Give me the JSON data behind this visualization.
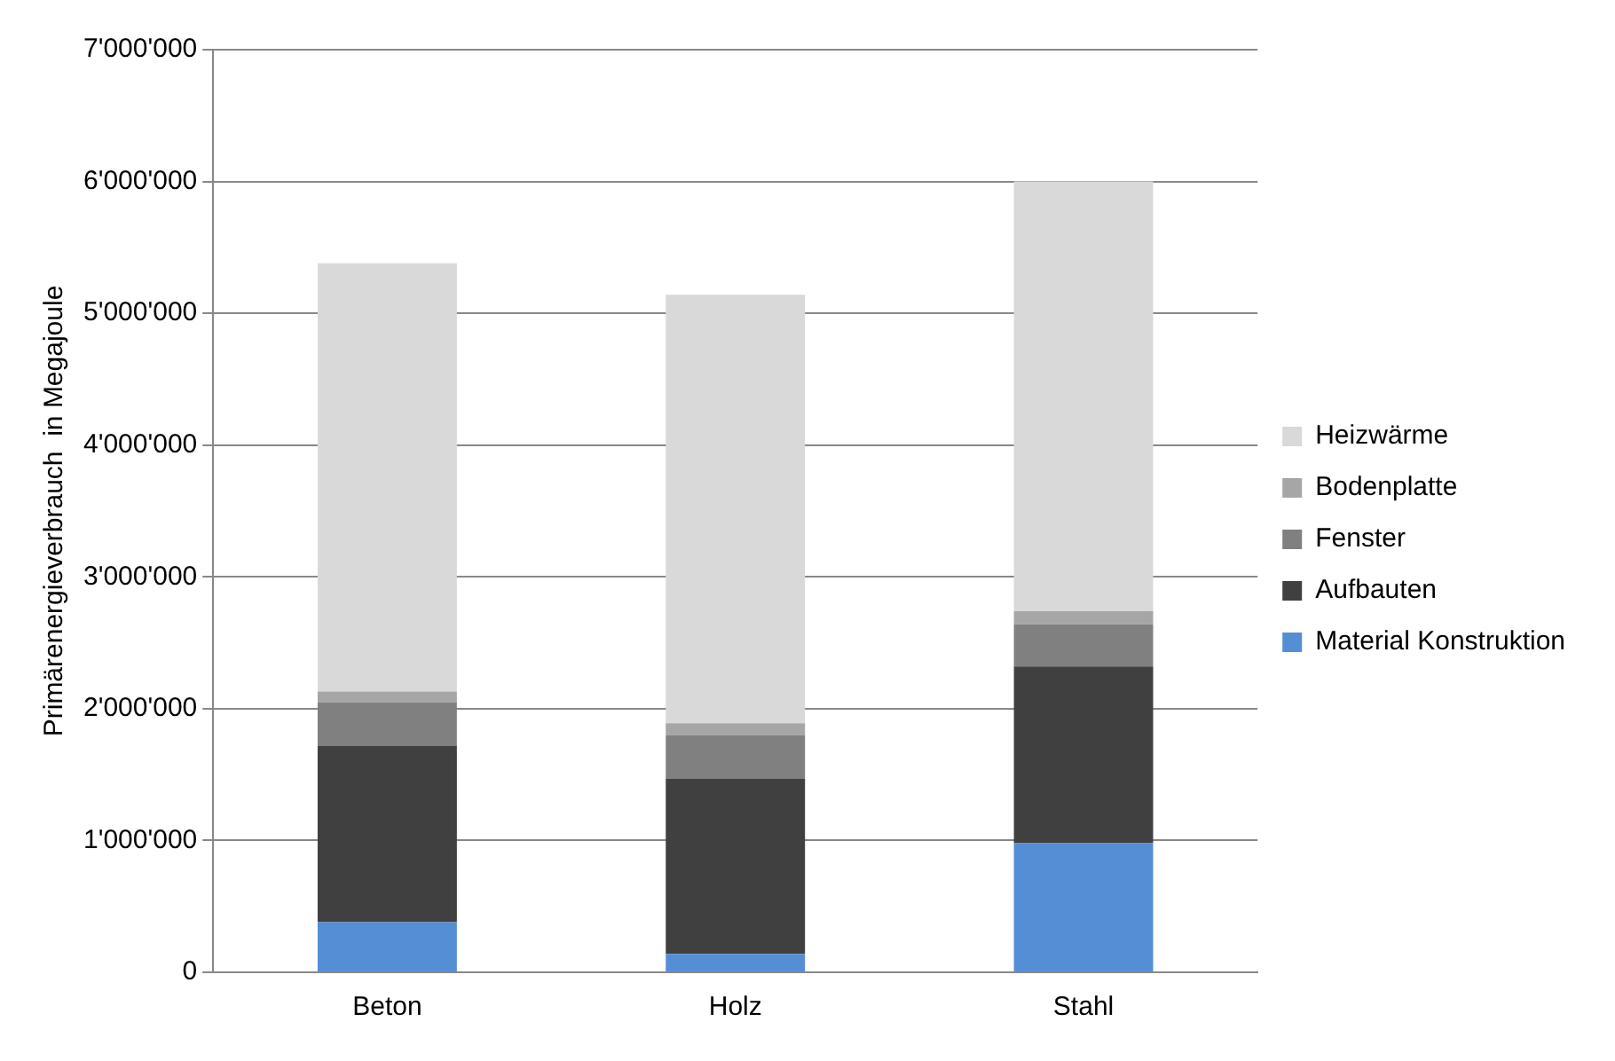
{
  "chart_data": {
    "type": "bar",
    "stacked": true,
    "ylabel": "Primärenergieverbrauch  in Megajoule",
    "categories": [
      "Beton",
      "Holz",
      "Stahl"
    ],
    "series": [
      {
        "name": "Material Konstruktion",
        "color": "#558ed5",
        "values": [
          380000,
          140000,
          980000
        ]
      },
      {
        "name": "Aufbauten",
        "color": "#404040",
        "values": [
          1340000,
          1330000,
          1340000
        ]
      },
      {
        "name": "Fenster",
        "color": "#808080",
        "values": [
          330000,
          330000,
          320000
        ]
      },
      {
        "name": "Bodenplatte",
        "color": "#a6a6a6",
        "values": [
          80000,
          90000,
          100000
        ]
      },
      {
        "name": "Heizwärme",
        "color": "#d9d9d9",
        "values": [
          3250000,
          3250000,
          3260000
        ]
      }
    ],
    "ylim": [
      0,
      7000000
    ],
    "yticks": [
      {
        "value": 0,
        "label": "0"
      },
      {
        "value": 1000000,
        "label": "1'000'000"
      },
      {
        "value": 2000000,
        "label": "2'000'000"
      },
      {
        "value": 3000000,
        "label": "3'000'000"
      },
      {
        "value": 4000000,
        "label": "4'000'000"
      },
      {
        "value": 5000000,
        "label": "5'000'000"
      },
      {
        "value": 6000000,
        "label": "6'000'000"
      },
      {
        "value": 7000000,
        "label": "7'000'000"
      }
    ],
    "grid": "y",
    "legend": "right"
  }
}
